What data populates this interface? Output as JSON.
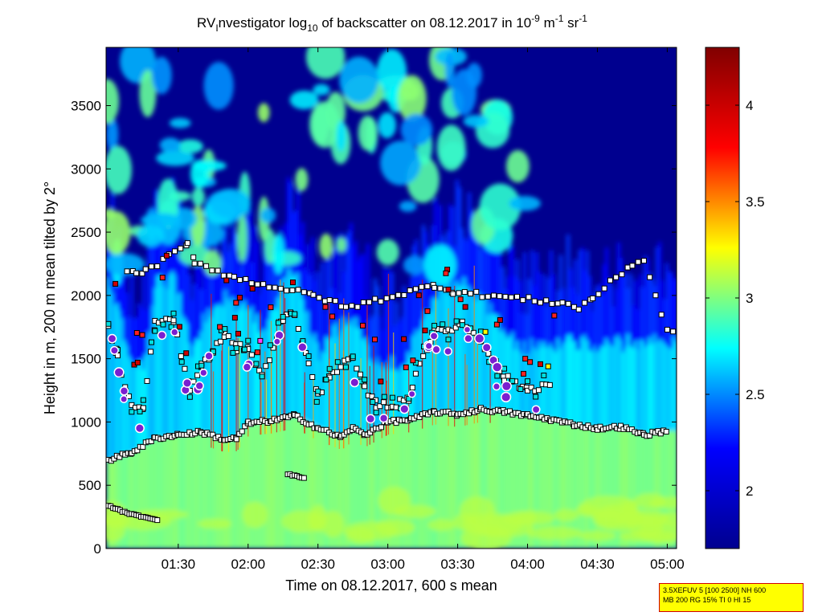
{
  "chart_data": {
    "type": "heatmap",
    "title": {
      "prefix": "RV",
      "sub_i": "I",
      "part2": "nvestigator log",
      "sub_10": "10",
      "part3": " of backscatter on 08.12.2017 in 10",
      "sup_m9": "-9",
      "part4": " m",
      "sup_m1a": "-1",
      "part5": " sr",
      "sup_m1b": "-1"
    },
    "xlabel": "Time on 08.12.2017, 600 s mean",
    "ylabel": "Height in m, 200 m mean tilted by 2°",
    "x_ticks": [
      "01:30",
      "02:00",
      "02:30",
      "03:00",
      "03:30",
      "04:00",
      "04:30",
      "05:00"
    ],
    "x_tick_minutes": [
      90,
      120,
      150,
      180,
      210,
      240,
      270,
      300
    ],
    "xlim_minutes": [
      59,
      304
    ],
    "y_ticks": [
      0,
      500,
      1000,
      1500,
      2000,
      2500,
      3000,
      3500
    ],
    "ylim": [
      0,
      3960
    ],
    "colorbar": {
      "range": [
        1.7,
        4.3
      ],
      "ticks": [
        2,
        2.5,
        3,
        3.5,
        4
      ],
      "colormap": [
        "#00008f",
        "#0000ff",
        "#00ffff",
        "#ffff00",
        "#ff0000",
        "#800000"
      ]
    },
    "layers": {
      "boundary_layer_top_m": [
        [
          60,
          700
        ],
        [
          70,
          760
        ],
        [
          80,
          870
        ],
        [
          90,
          900
        ],
        [
          100,
          920
        ],
        [
          110,
          860
        ],
        [
          115,
          870
        ],
        [
          120,
          990
        ],
        [
          130,
          1010
        ],
        [
          140,
          1050
        ],
        [
          150,
          950
        ],
        [
          160,
          880
        ],
        [
          165,
          950
        ],
        [
          170,
          900
        ],
        [
          180,
          1000
        ],
        [
          190,
          1020
        ],
        [
          200,
          1080
        ],
        [
          210,
          1060
        ],
        [
          220,
          1100
        ],
        [
          230,
          1080
        ],
        [
          240,
          1050
        ],
        [
          250,
          1020
        ],
        [
          260,
          980
        ],
        [
          270,
          950
        ],
        [
          280,
          960
        ],
        [
          290,
          900
        ],
        [
          300,
          930
        ]
      ],
      "lower_segments_m": [
        [
          [
            60,
            340
          ],
          [
            65,
            300
          ],
          [
            70,
            270
          ],
          [
            78,
            240
          ],
          [
            82,
            225
          ]
        ],
        [
          [
            137,
            590
          ],
          [
            141,
            570
          ],
          [
            145,
            555
          ]
        ]
      ],
      "upper_cloud_m": [
        [
          60,
          1750
        ],
        [
          64,
          1500
        ],
        [
          70,
          1120
        ],
        [
          75,
          1100
        ],
        [
          80,
          1780
        ],
        [
          88,
          1800
        ],
        [
          95,
          1250
        ],
        [
          100,
          1450
        ],
        [
          105,
          1550
        ],
        [
          110,
          1700
        ],
        [
          115,
          1580
        ],
        [
          120,
          1600
        ],
        [
          126,
          1350
        ],
        [
          135,
          1820
        ],
        [
          140,
          1860
        ],
        [
          146,
          1450
        ],
        [
          150,
          1200
        ],
        [
          155,
          1380
        ],
        [
          165,
          1500
        ],
        [
          170,
          1260
        ],
        [
          175,
          1140
        ],
        [
          182,
          1130
        ],
        [
          189,
          1180
        ],
        [
          192,
          1400
        ],
        [
          200,
          1700
        ],
        [
          206,
          1730
        ],
        [
          212,
          1780
        ],
        [
          220,
          1650
        ],
        [
          230,
          1350
        ],
        [
          240,
          1260
        ],
        [
          250,
          1300
        ]
      ],
      "high_cloud_m": [
        [
          68,
          2200
        ],
        [
          72,
          2180
        ],
        [
          76,
          2190
        ],
        [
          94,
          2400
        ],
        [
          97,
          2270
        ],
        [
          114,
          2140
        ],
        [
          148,
          2000
        ],
        [
          155,
          1960
        ],
        [
          162,
          1900
        ],
        [
          200,
          2080
        ],
        [
          208,
          2030
        ],
        [
          255,
          1940
        ],
        [
          262,
          1900
        ],
        [
          268,
          1980
        ],
        [
          285,
          2250
        ],
        [
          290,
          2280
        ],
        [
          300,
          1720
        ],
        [
          303,
          1700
        ]
      ]
    }
  },
  "info_box": {
    "line1": "3.5XEFUV 5 [100 2500] NH 600",
    "line2": "MB 200 RG 15% TI 0 HI 15"
  }
}
